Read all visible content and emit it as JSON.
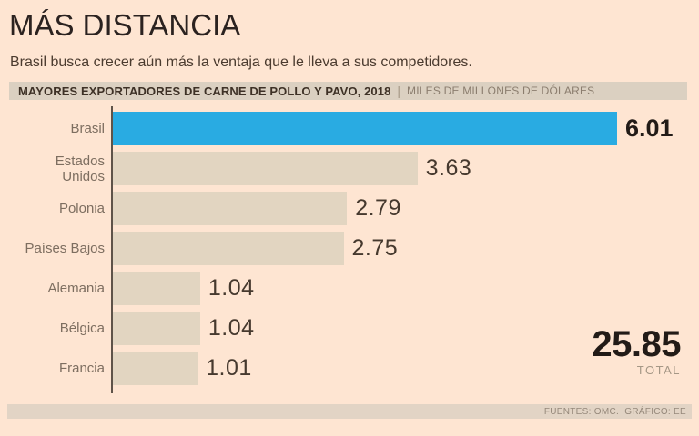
{
  "page": {
    "background": "#fee5d2"
  },
  "header": {
    "title": "MÁS DISTANCIA",
    "subtitle": "Brasil busca crecer aún más la ventaja que le lleva a sus competidores."
  },
  "chart_header": {
    "title": "MAYORES EXPORTADORES DE CARNE DE POLLO Y PAVO, 2018",
    "separator": "|",
    "units": "MILES DE MILLONES DE DÓLARES"
  },
  "chart_data": {
    "type": "bar",
    "orientation": "horizontal",
    "title": "MAYORES EXPORTADORES DE CARNE DE POLLO Y PAVO, 2018",
    "units": "MILES DE MILLONES DE DÓLARES",
    "categories": [
      "Brasil",
      "Estados Unidos",
      "Polonia",
      "Países Bajos",
      "Alemania",
      "Bélgica",
      "Francia"
    ],
    "values": [
      6.01,
      3.63,
      2.79,
      2.75,
      1.04,
      1.04,
      1.01
    ],
    "xlim": [
      0,
      6.01
    ],
    "highlight_index": 0,
    "highlight_color": "#29abe2",
    "bar_color": "#e2d5c1",
    "grid": false,
    "legend": false,
    "total": 25.85,
    "total_label": "TOTAL"
  },
  "total": {
    "value": "25.85",
    "label": "TOTAL"
  },
  "footer": {
    "sources": "FUENTES: OMC.  GRÁFICO: EE"
  }
}
